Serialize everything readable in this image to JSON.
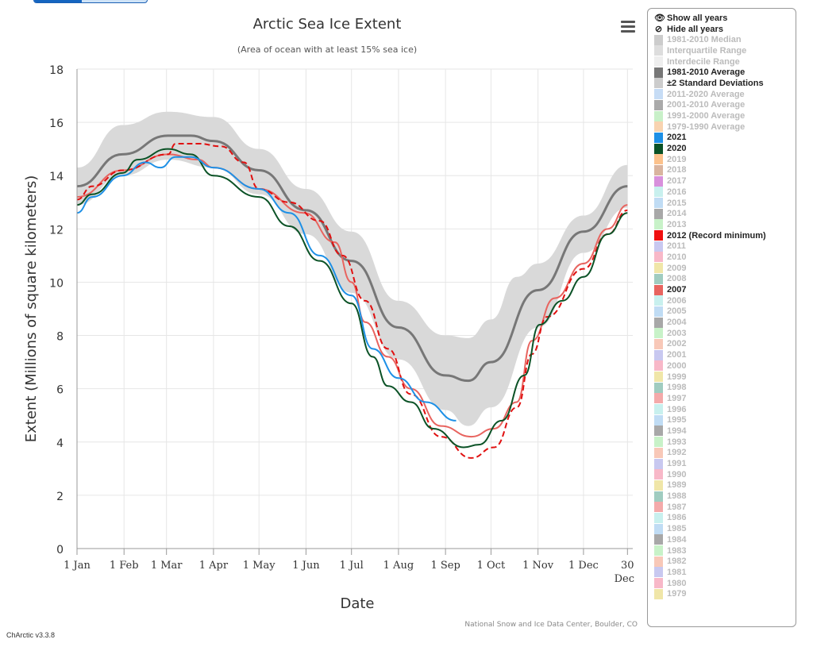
{
  "top_button": {
    "state": "partially visible"
  },
  "menu_icon": "hamburger-icon",
  "version": "ChArctic v3.3.8",
  "legend": {
    "show_all": "Show all years",
    "hide_all": "Hide all years",
    "items": [
      {
        "label": "1981-2010 Median",
        "color": "#cccccc",
        "active": false
      },
      {
        "label": "Interquartile Range",
        "color": "#dddddd",
        "active": false
      },
      {
        "label": "Interdecile Range",
        "color": "#eeeeee",
        "active": false
      },
      {
        "label": "1981-2010 Average",
        "color": "#777777",
        "active": true
      },
      {
        "label": "±2 Standard Deviations",
        "color": "#cccccc",
        "active": true
      },
      {
        "label": "2011-2020 Average",
        "color": "#c6dcf5",
        "active": false
      },
      {
        "label": "2001-2010 Average",
        "color": "#aaaaaa",
        "active": false
      },
      {
        "label": "1991-2000 Average",
        "color": "#c8f0c8",
        "active": false
      },
      {
        "label": "1979-1990 Average",
        "color": "#f8d3b0",
        "active": false
      },
      {
        "label": "2021",
        "color": "#1e90e6",
        "active": true
      },
      {
        "label": "2020",
        "color": "#0b5226",
        "active": true
      },
      {
        "label": "2019",
        "color": "#fcc28c",
        "active": false
      },
      {
        "label": "2018",
        "color": "#d9b49f",
        "active": false
      },
      {
        "label": "2017",
        "color": "#d890dc",
        "active": false
      },
      {
        "label": "2016",
        "color": "#c8f0ee",
        "active": false
      },
      {
        "label": "2015",
        "color": "#c0dcf4",
        "active": false
      },
      {
        "label": "2014",
        "color": "#a8a8a8",
        "active": false
      },
      {
        "label": "2013",
        "color": "#c8f2c8",
        "active": false
      },
      {
        "label": "2012 (Record minimum)",
        "color": "#f01010",
        "active": true
      },
      {
        "label": "2011",
        "color": "#c8c8f0",
        "active": false
      },
      {
        "label": "2010",
        "color": "#f8b8c8",
        "active": false
      },
      {
        "label": "2009",
        "color": "#f0e6a8",
        "active": false
      },
      {
        "label": "2008",
        "color": "#a0ccc0",
        "active": false
      },
      {
        "label": "2007",
        "color": "#e8645f",
        "active": true
      },
      {
        "label": "2006",
        "color": "#c8f0ee",
        "active": false
      },
      {
        "label": "2005",
        "color": "#c0dcf4",
        "active": false
      },
      {
        "label": "2004",
        "color": "#a8a8a8",
        "active": false
      },
      {
        "label": "2003",
        "color": "#c8f2c8",
        "active": false
      },
      {
        "label": "2002",
        "color": "#f8c8b8",
        "active": false
      },
      {
        "label": "2001",
        "color": "#c8c8f0",
        "active": false
      },
      {
        "label": "2000",
        "color": "#f8b8c8",
        "active": false
      },
      {
        "label": "1999",
        "color": "#f0e6a8",
        "active": false
      },
      {
        "label": "1998",
        "color": "#a0ccc0",
        "active": false
      },
      {
        "label": "1997",
        "color": "#f4aaaa",
        "active": false
      },
      {
        "label": "1996",
        "color": "#c8f0ee",
        "active": false
      },
      {
        "label": "1995",
        "color": "#c0dcf4",
        "active": false
      },
      {
        "label": "1994",
        "color": "#a8a8a8",
        "active": false
      },
      {
        "label": "1993",
        "color": "#c8f2c8",
        "active": false
      },
      {
        "label": "1992",
        "color": "#f8c8b8",
        "active": false
      },
      {
        "label": "1991",
        "color": "#c8c8f0",
        "active": false
      },
      {
        "label": "1990",
        "color": "#f8b8c8",
        "active": false
      },
      {
        "label": "1989",
        "color": "#f0e6a8",
        "active": false
      },
      {
        "label": "1988",
        "color": "#a0ccc0",
        "active": false
      },
      {
        "label": "1987",
        "color": "#f4aaaa",
        "active": false
      },
      {
        "label": "1986",
        "color": "#c8f0ee",
        "active": false
      },
      {
        "label": "1985",
        "color": "#c0dcf4",
        "active": false
      },
      {
        "label": "1984",
        "color": "#a8a8a8",
        "active": false
      },
      {
        "label": "1983",
        "color": "#c8f2c8",
        "active": false
      },
      {
        "label": "1982",
        "color": "#f8c8b8",
        "active": false
      },
      {
        "label": "1981",
        "color": "#c8c8f0",
        "active": false
      },
      {
        "label": "1980",
        "color": "#f8b8c8",
        "active": false
      },
      {
        "label": "1979",
        "color": "#f0e6a8",
        "active": false
      }
    ]
  },
  "chart_data": {
    "type": "line",
    "title": "Arctic Sea Ice Extent",
    "subtitle": "(Area of ocean with at least 15% sea ice)",
    "xlabel": "Date",
    "ylabel": "Extent (Millions of square kilometers)",
    "credit": "National Snow and Ice Data Center, Boulder, CO",
    "ylim": [
      0,
      18
    ],
    "yticks": [
      0,
      2,
      4,
      6,
      8,
      10,
      12,
      14,
      16,
      18
    ],
    "xlim": [
      0,
      365
    ],
    "xticks": [
      {
        "day": 0,
        "label": "1 Jan"
      },
      {
        "day": 31,
        "label": "1 Feb"
      },
      {
        "day": 59,
        "label": "1 Mar"
      },
      {
        "day": 90,
        "label": "1 Apr"
      },
      {
        "day": 120,
        "label": "1 May"
      },
      {
        "day": 151,
        "label": "1 Jun"
      },
      {
        "day": 181,
        "label": "1 Jul"
      },
      {
        "day": 212,
        "label": "1 Aug"
      },
      {
        "day": 243,
        "label": "1 Sep"
      },
      {
        "day": 273,
        "label": "1 Oct"
      },
      {
        "day": 304,
        "label": "1 Nov"
      },
      {
        "day": 334,
        "label": "1 Dec"
      },
      {
        "day": 363,
        "label": "30 Dec"
      }
    ],
    "band": {
      "name": "±2 Standard Deviations",
      "color": "#d9d9d9",
      "upper": [
        [
          0,
          14.3
        ],
        [
          30,
          15.9
        ],
        [
          60,
          16.4
        ],
        [
          90,
          16.2
        ],
        [
          120,
          15.0
        ],
        [
          151,
          13.5
        ],
        [
          181,
          11.9
        ],
        [
          212,
          9.3
        ],
        [
          243,
          8.0
        ],
        [
          258,
          7.9
        ],
        [
          273,
          8.6
        ],
        [
          290,
          10.2
        ],
        [
          304,
          10.7
        ],
        [
          334,
          12.5
        ],
        [
          363,
          14.4
        ]
      ],
      "lower": [
        [
          0,
          12.9
        ],
        [
          30,
          14.0
        ],
        [
          60,
          14.6
        ],
        [
          90,
          14.3
        ],
        [
          120,
          13.3
        ],
        [
          151,
          11.8
        ],
        [
          181,
          9.6
        ],
        [
          212,
          7.1
        ],
        [
          243,
          5.2
        ],
        [
          258,
          4.6
        ],
        [
          273,
          5.3
        ],
        [
          304,
          8.3
        ],
        [
          334,
          11.1
        ],
        [
          363,
          12.8
        ]
      ]
    },
    "series": [
      {
        "name": "1981-2010 Average",
        "color": "#777777",
        "width": 3,
        "dash": false,
        "points": [
          [
            0,
            13.6
          ],
          [
            30,
            14.8
          ],
          [
            60,
            15.5
          ],
          [
            75,
            15.5
          ],
          [
            90,
            15.3
          ],
          [
            120,
            14.2
          ],
          [
            151,
            12.7
          ],
          [
            181,
            10.8
          ],
          [
            212,
            8.3
          ],
          [
            243,
            6.5
          ],
          [
            258,
            6.3
          ],
          [
            273,
            7.0
          ],
          [
            304,
            9.7
          ],
          [
            334,
            11.9
          ],
          [
            363,
            13.6
          ]
        ]
      },
      {
        "name": "2007",
        "color": "#e8645f",
        "width": 2,
        "dash": false,
        "points": [
          [
            0,
            13.2
          ],
          [
            30,
            14.2
          ],
          [
            60,
            14.8
          ],
          [
            80,
            14.6
          ],
          [
            90,
            14.3
          ],
          [
            120,
            13.5
          ],
          [
            150,
            12.6
          ],
          [
            170,
            11.5
          ],
          [
            181,
            10.0
          ],
          [
            190,
            8.5
          ],
          [
            205,
            7.2
          ],
          [
            220,
            6.0
          ],
          [
            240,
            4.6
          ],
          [
            260,
            4.2
          ],
          [
            275,
            4.5
          ],
          [
            290,
            5.5
          ],
          [
            300,
            7.8
          ],
          [
            315,
            9.4
          ],
          [
            334,
            10.7
          ],
          [
            350,
            12.0
          ],
          [
            363,
            12.9
          ]
        ]
      },
      {
        "name": "2012 (Record minimum)",
        "color": "#e01010",
        "width": 2,
        "dash": true,
        "points": [
          [
            0,
            13.1
          ],
          [
            10,
            13.6
          ],
          [
            30,
            14.2
          ],
          [
            60,
            14.8
          ],
          [
            65,
            15.2
          ],
          [
            80,
            15.2
          ],
          [
            95,
            15.1
          ],
          [
            110,
            14.5
          ],
          [
            120,
            13.5
          ],
          [
            140,
            13.0
          ],
          [
            160,
            12.3
          ],
          [
            175,
            11.0
          ],
          [
            190,
            9.3
          ],
          [
            205,
            7.5
          ],
          [
            220,
            5.8
          ],
          [
            240,
            4.2
          ],
          [
            260,
            3.4
          ],
          [
            275,
            3.8
          ],
          [
            290,
            5.3
          ],
          [
            300,
            7.3
          ],
          [
            310,
            8.7
          ],
          [
            334,
            10.5
          ],
          [
            350,
            11.8
          ],
          [
            363,
            12.7
          ]
        ]
      },
      {
        "name": "2020",
        "color": "#0b5226",
        "width": 2,
        "dash": false,
        "points": [
          [
            0,
            12.9
          ],
          [
            10,
            13.3
          ],
          [
            30,
            14.1
          ],
          [
            40,
            14.6
          ],
          [
            60,
            15.0
          ],
          [
            75,
            14.8
          ],
          [
            90,
            14.0
          ],
          [
            120,
            13.2
          ],
          [
            140,
            12.1
          ],
          [
            160,
            10.8
          ],
          [
            181,
            9.2
          ],
          [
            195,
            7.2
          ],
          [
            205,
            6.1
          ],
          [
            220,
            5.5
          ],
          [
            235,
            4.5
          ],
          [
            255,
            3.8
          ],
          [
            265,
            3.9
          ],
          [
            280,
            4.8
          ],
          [
            295,
            6.5
          ],
          [
            305,
            8.4
          ],
          [
            320,
            9.3
          ],
          [
            334,
            10.2
          ],
          [
            350,
            11.8
          ],
          [
            363,
            12.6
          ]
        ]
      },
      {
        "name": "2021",
        "color": "#1e90e6",
        "width": 2,
        "dash": false,
        "points": [
          [
            0,
            12.6
          ],
          [
            10,
            13.2
          ],
          [
            30,
            14.0
          ],
          [
            45,
            14.5
          ],
          [
            55,
            14.3
          ],
          [
            65,
            14.7
          ],
          [
            75,
            14.7
          ],
          [
            90,
            14.3
          ],
          [
            120,
            13.5
          ],
          [
            140,
            12.6
          ],
          [
            160,
            11.0
          ],
          [
            181,
            9.5
          ],
          [
            195,
            7.5
          ],
          [
            212,
            6.4
          ],
          [
            230,
            5.5
          ],
          [
            250,
            4.8
          ]
        ]
      }
    ]
  }
}
